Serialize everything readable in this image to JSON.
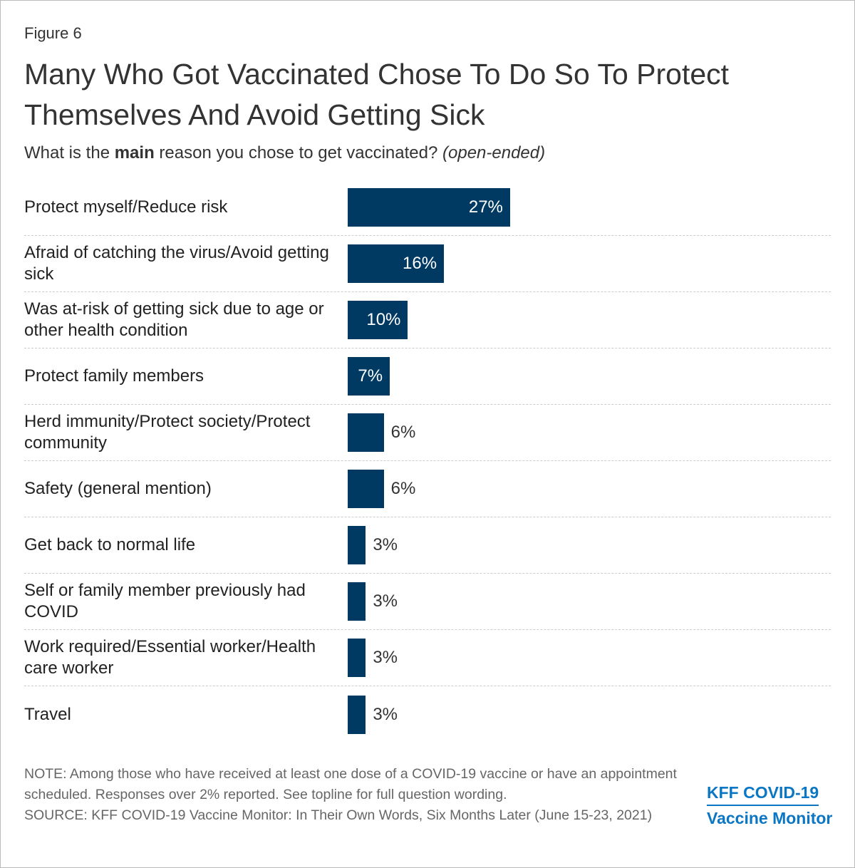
{
  "chart_data": {
    "type": "bar",
    "orientation": "horizontal",
    "figure_label": "Figure 6",
    "title": "Many Who Got Vaccinated Chose To Do So To Protect Themselves And Avoid Getting Sick",
    "subtitle": [
      "What is the",
      "main",
      "reason you chose to get vaccinated?",
      "(open-ended)"
    ],
    "categories": [
      "Protect myself/Reduce risk",
      "Afraid of catching the virus/Avoid getting sick",
      "Was at-risk of getting sick due to age or other health condition",
      "Protect family members",
      "Herd immunity/Protect society/Protect community",
      "Safety (general mention)",
      "Get back to normal life",
      "Self or family member previously had COVID",
      "Work required/Essential worker/Health care worker",
      "Travel"
    ],
    "values": [
      27,
      16,
      10,
      7,
      6,
      6,
      3,
      3,
      3,
      3
    ],
    "value_labels": [
      "27%",
      "16%",
      "10%",
      "7%",
      "6%",
      "6%",
      "3%",
      "3%",
      "3%",
      "3%"
    ],
    "color": "#003a63",
    "note": "NOTE: Among those who have received at least one dose of a COVID-19 vaccine or have an appointment scheduled. Responses over 2% reported. See topline for full question wording.",
    "source": "SOURCE: KFF COVID-19 Vaccine Monitor: In Their Own Words, Six Months Later (June 15-23, 2021)",
    "logo": [
      "KFF COVID-19",
      "Vaccine Monitor"
    ]
  }
}
